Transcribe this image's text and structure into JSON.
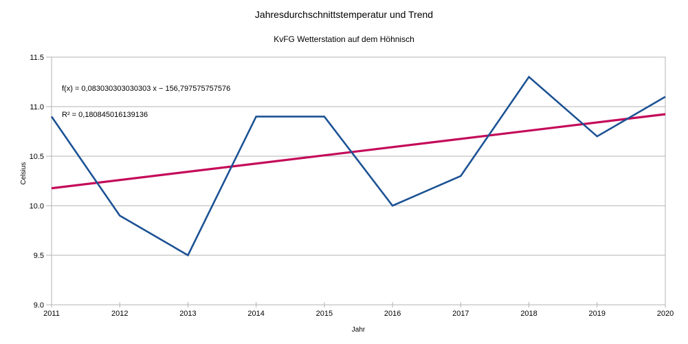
{
  "chart_data": {
    "type": "line",
    "title": "Jahresdurchschnittstemperatur und Trend",
    "subtitle": "KvFG Wetterstation auf dem Höhnisch",
    "xlabel": "Jahr",
    "ylabel": "Celsius",
    "categories": [
      "2011",
      "2012",
      "2013",
      "2014",
      "2015",
      "2016",
      "2017",
      "2018",
      "2019",
      "2020"
    ],
    "series": [
      {
        "name": "Jahresdurchschnittstemperatur",
        "type": "line",
        "color": "#1C5294",
        "values": [
          10.9,
          9.9,
          9.5,
          10.9,
          10.9,
          10.0,
          10.3,
          11.3,
          10.7,
          11.1
        ]
      },
      {
        "name": "Trend",
        "type": "linear-trend",
        "color": "#C40A5A",
        "slope": 0.083030303030303,
        "intercept": -156.797575757576,
        "x_start": 2011,
        "x_end": 2020
      }
    ],
    "ylim": [
      9.0,
      11.5
    ],
    "ytick_values": [
      9.0,
      9.5,
      10.0,
      10.5,
      11.0,
      11.5
    ],
    "ytick_labels": [
      "9.0",
      "9.5",
      "10.0",
      "10.5",
      "11.0",
      "11.5"
    ],
    "grid": "horizontal",
    "legend": "none",
    "annotation": {
      "line1": "f(x) = 0,083030303030303 x − 156,797575757576",
      "line2": "R² = 0,180845016139136"
    }
  },
  "colors": {
    "background": "#FFFFFF",
    "grid": "#B3B3B3",
    "axis": "#B3B3B3",
    "text": "#000000",
    "series": "#1C5294",
    "trend": "#C40A5A"
  }
}
